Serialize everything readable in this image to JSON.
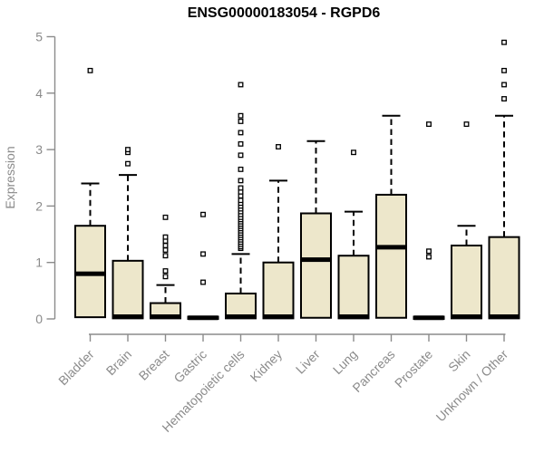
{
  "chart_data": {
    "type": "boxplot",
    "title": "ENSG00000183054 - RGPD6",
    "xlabel": "",
    "ylabel": "Expression",
    "ylim": [
      0,
      5
    ],
    "yticks": [
      "0",
      "1",
      "2",
      "3",
      "4",
      "5"
    ],
    "grid": false,
    "legend": "none",
    "colors": {
      "box_fill": "#EDE7CB",
      "box_border": "#000000",
      "median": "#000000",
      "whisker": "#000000",
      "outlier": "#000000",
      "axis": "#8B8B8B",
      "background": "#FFFFFF"
    },
    "categories": [
      "Bladder",
      "Brain",
      "Breast",
      "Gastric",
      "Hematopoietic cells",
      "Kidney",
      "Liver",
      "Lung",
      "Pancreas",
      "Prostate",
      "Skin",
      "Unknown / Other"
    ],
    "series": [
      {
        "category": "Bladder",
        "low": 0,
        "q1": 0.03,
        "median": 0.8,
        "q3": 1.65,
        "high": 2.4,
        "outliers": [
          4.4
        ]
      },
      {
        "category": "Brain",
        "low": 0,
        "q1": 0.01,
        "median": 0.04,
        "q3": 1.03,
        "high": 2.55,
        "outliers": [
          2.75,
          2.95,
          3.0
        ]
      },
      {
        "category": "Breast",
        "low": 0,
        "q1": 0.01,
        "median": 0.04,
        "q3": 0.28,
        "high": 0.6,
        "outliers": [
          0.75,
          0.85,
          1.12,
          1.22,
          1.3,
          1.38,
          1.45,
          1.8
        ]
      },
      {
        "category": "Gastric",
        "low": 0,
        "q1": 0.0,
        "median": 0.02,
        "q3": 0.04,
        "high": 0.05,
        "outliers": [
          0.65,
          1.15,
          1.85
        ]
      },
      {
        "category": "Hematopoietic cells",
        "low": 0,
        "q1": 0.01,
        "median": 0.04,
        "q3": 0.45,
        "high": 1.15,
        "outliers": [
          1.25,
          1.28,
          1.32,
          1.36,
          1.4,
          1.44,
          1.48,
          1.52,
          1.56,
          1.6,
          1.64,
          1.68,
          1.72,
          1.76,
          1.8,
          1.85,
          1.9,
          1.95,
          2.0,
          2.05,
          2.1,
          2.18,
          2.25,
          2.32,
          2.45,
          2.65,
          2.9,
          3.1,
          3.3,
          3.5,
          3.6,
          4.15
        ]
      },
      {
        "category": "Kidney",
        "low": 0,
        "q1": 0.01,
        "median": 0.04,
        "q3": 1.0,
        "high": 2.45,
        "outliers": [
          3.05
        ]
      },
      {
        "category": "Liver",
        "low": 0,
        "q1": 0.02,
        "median": 1.05,
        "q3": 1.87,
        "high": 3.15,
        "outliers": []
      },
      {
        "category": "Lung",
        "low": 0,
        "q1": 0.01,
        "median": 0.04,
        "q3": 1.12,
        "high": 1.9,
        "outliers": [
          2.95
        ]
      },
      {
        "category": "Pancreas",
        "low": 0,
        "q1": 0.02,
        "median": 1.27,
        "q3": 2.2,
        "high": 3.6,
        "outliers": []
      },
      {
        "category": "Prostate",
        "low": 0,
        "q1": 0.0,
        "median": 0.02,
        "q3": 0.04,
        "high": 0.05,
        "outliers": [
          1.1,
          1.2,
          3.45
        ]
      },
      {
        "category": "Skin",
        "low": 0,
        "q1": 0.01,
        "median": 0.04,
        "q3": 1.3,
        "high": 1.65,
        "outliers": [
          3.45
        ]
      },
      {
        "category": "Unknown / Other",
        "low": 0,
        "q1": 0.01,
        "median": 0.04,
        "q3": 1.45,
        "high": 3.6,
        "outliers": [
          3.9,
          4.15,
          4.4,
          4.9
        ]
      }
    ]
  }
}
